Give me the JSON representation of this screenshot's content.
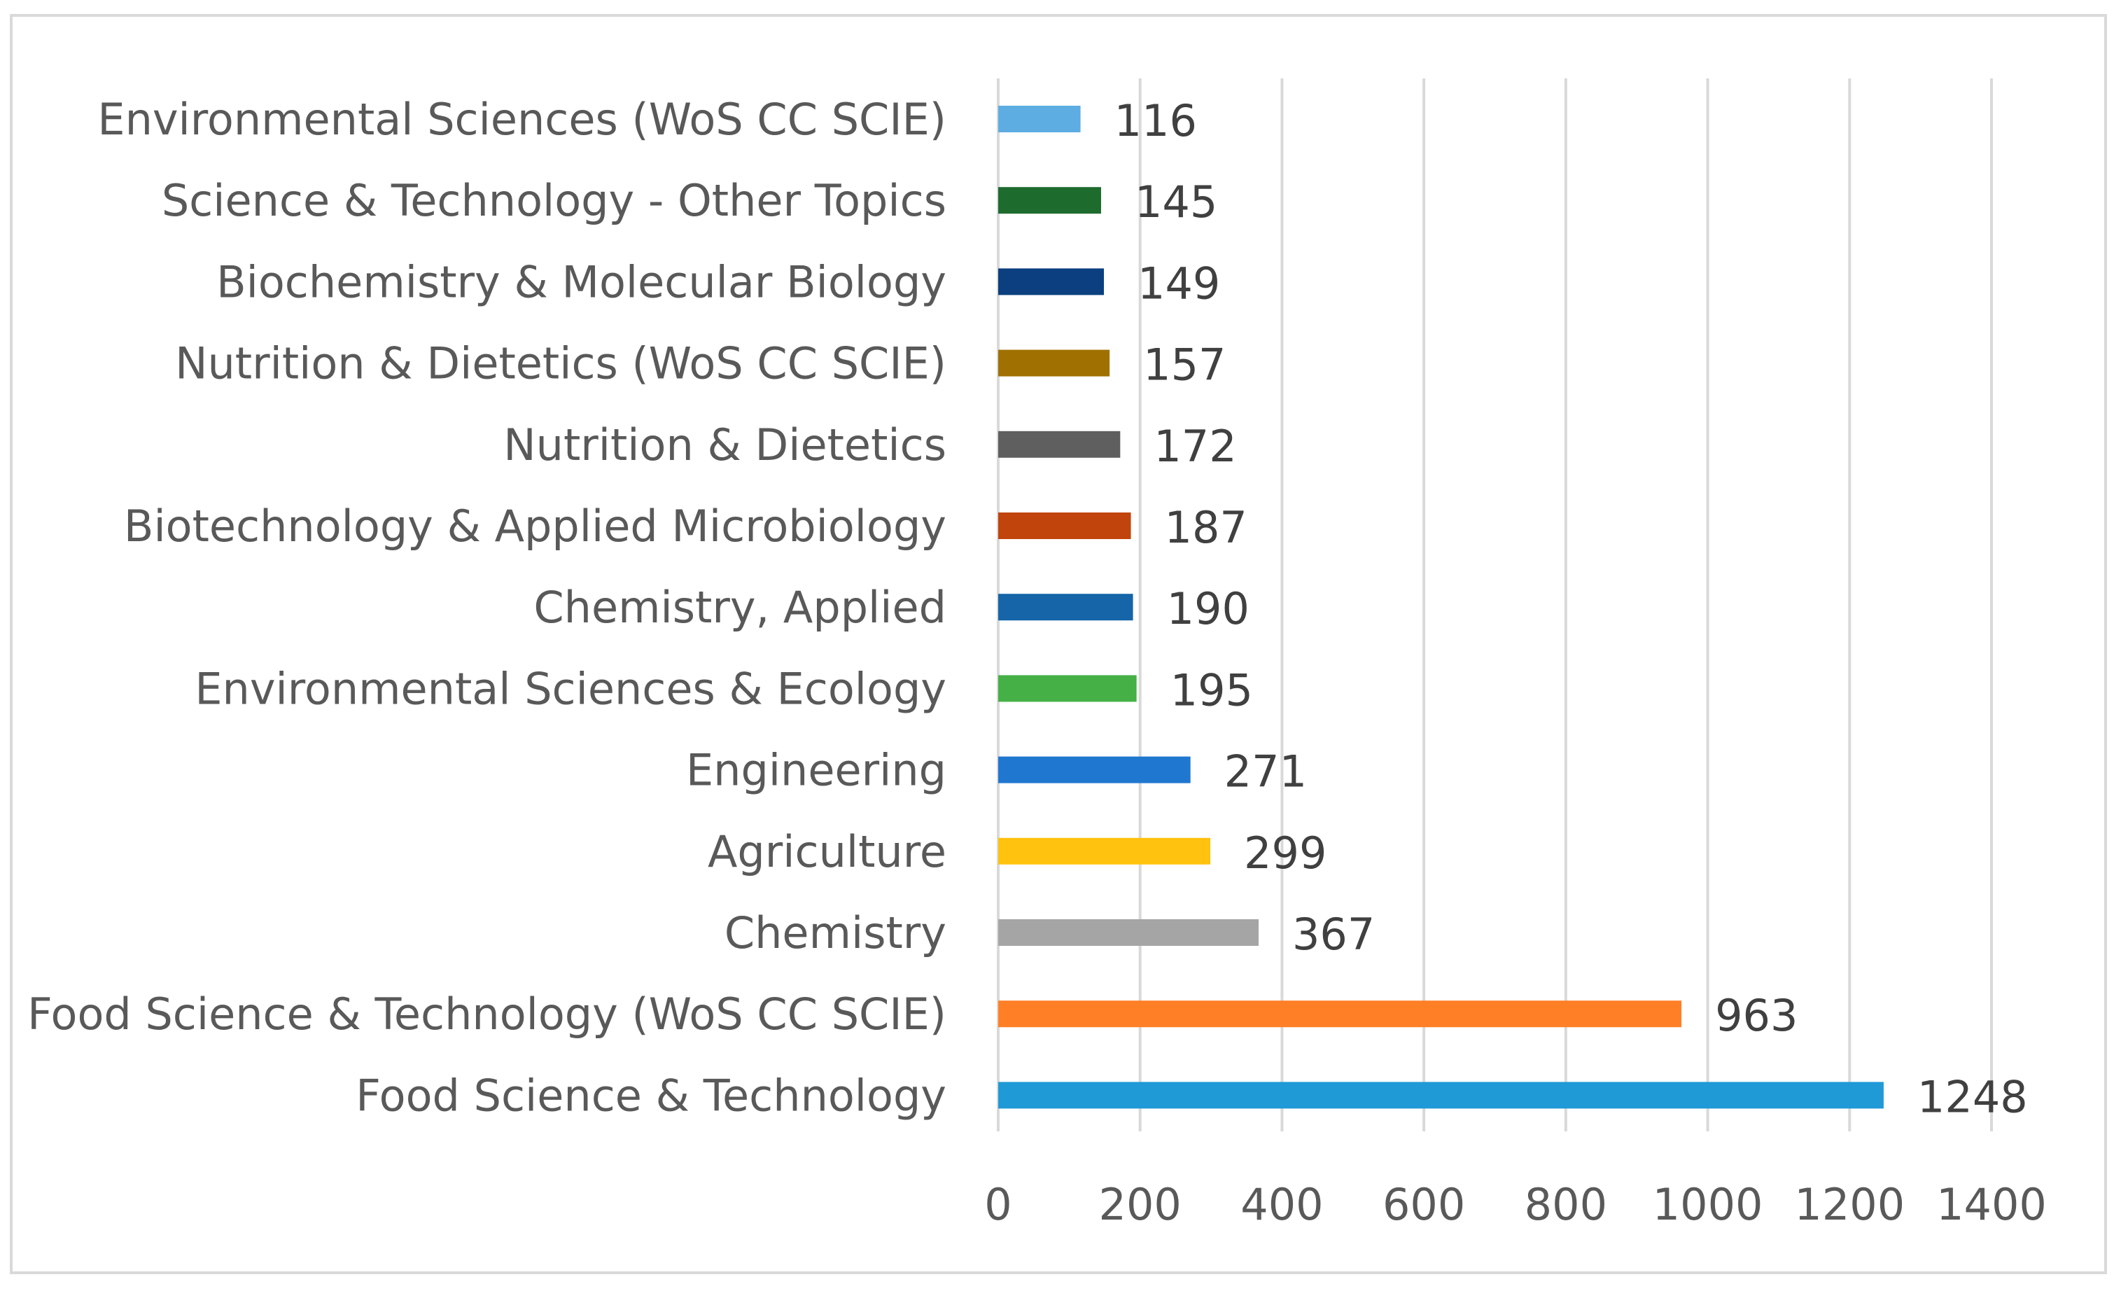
{
  "chart_data": {
    "type": "bar",
    "orientation": "horizontal",
    "title": "",
    "xlabel": "",
    "ylabel": "",
    "xlim": [
      0,
      1400
    ],
    "ticks": [
      0,
      200,
      400,
      600,
      800,
      1000,
      1200,
      1400
    ],
    "grid": true,
    "categories": [
      "Environmental Sciences (WoS CC SCIE)",
      "Science & Technology - Other Topics",
      "Biochemistry & Molecular Biology",
      "Nutrition & Dietetics  (WoS CC SCIE)",
      "Nutrition & Dietetics",
      "Biotechnology & Applied Microbiology",
      "Chemistry, Applied",
      "Environmental Sciences & Ecology",
      "Engineering",
      "Agriculture",
      "Chemistry",
      "Food Science & Technology (WoS CC SCIE)",
      "Food Science & Technology"
    ],
    "values": [
      116,
      145,
      149,
      157,
      172,
      187,
      190,
      195,
      271,
      299,
      367,
      963,
      1248
    ],
    "value_labels": [
      "116",
      "145",
      "149",
      "157",
      "172",
      "187",
      "190",
      "195",
      "271",
      "299",
      "367",
      "963",
      "1248"
    ],
    "colors": [
      "#5DADE2",
      "#1E6B2E",
      "#0B3F7F",
      "#A07000",
      "#5F5F5F",
      "#C0440C",
      "#1565A8",
      "#45B045",
      "#1F77D0",
      "#FFC20E",
      "#A5A5A5",
      "#FF7F27",
      "#1F9AD6"
    ],
    "gridline_color": "#d9d9d9"
  }
}
